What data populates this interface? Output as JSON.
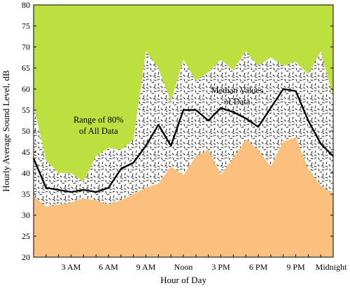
{
  "chart_data": {
    "type": "area",
    "xlabel": "Hour of Day",
    "ylabel": "Hourly Average Sound Level, dB",
    "ylim": [
      20,
      80
    ],
    "yticks": [
      20,
      25,
      30,
      35,
      40,
      45,
      50,
      55,
      60,
      65,
      70,
      75,
      80
    ],
    "xlim": [
      0,
      24
    ],
    "xticks": [
      {
        "x": 3,
        "label": "3 AM"
      },
      {
        "x": 6,
        "label": "6 AM"
      },
      {
        "x": 9,
        "label": "9 AM"
      },
      {
        "x": 12,
        "label": "Noon"
      },
      {
        "x": 15,
        "label": "3 PM"
      },
      {
        "x": 18,
        "label": "6 PM"
      },
      {
        "x": 21,
        "label": "9 PM"
      },
      {
        "x": 24,
        "label": "Midnight"
      }
    ],
    "x": [
      0,
      1,
      2,
      3,
      4,
      5,
      6,
      7,
      8,
      9,
      10,
      11,
      12,
      13,
      14,
      15,
      16,
      17,
      18,
      19,
      20,
      21,
      22,
      23,
      24
    ],
    "series": [
      {
        "role": "upper_bound",
        "values": [
          56,
          43,
          40,
          40,
          38,
          44,
          46,
          45.5,
          48,
          69,
          65,
          57,
          67,
          62,
          64,
          67,
          64.5,
          69,
          65.5,
          67.5,
          65.5,
          66.5,
          63.5,
          69,
          58
        ]
      },
      {
        "role": "median",
        "values": [
          43.5,
          36.5,
          36,
          35.5,
          36,
          35.5,
          36.5,
          41,
          42.5,
          46.5,
          51.5,
          46.5,
          55,
          55,
          52.5,
          55.5,
          54.5,
          53,
          51,
          55.5,
          60,
          59.5,
          52.5,
          47,
          44
        ]
      },
      {
        "role": "lower_bound",
        "values": [
          34.5,
          32,
          32.5,
          33,
          34,
          33.5,
          32.5,
          33.5,
          35,
          36.5,
          37.5,
          41.5,
          39.5,
          44,
          45.5,
          39.5,
          43.5,
          48,
          45.5,
          41.5,
          47.5,
          48.5,
          41,
          37,
          35
        ]
      }
    ],
    "colors": {
      "above_range": "#bde040",
      "range": "#ffffff",
      "below_range": "#fbbf7e",
      "median_line": "#000000",
      "speckle": "#000000"
    },
    "annotations": [
      {
        "lines": [
          "Range of 80%",
          "of All Data"
        ],
        "anchor_x": 5.2,
        "anchor_y": 52,
        "align": "middle"
      },
      {
        "lines": [
          "Median Values",
          "of Data"
        ],
        "anchor_x": 16.3,
        "anchor_y": 59,
        "align": "middle"
      }
    ],
    "grid": false
  }
}
